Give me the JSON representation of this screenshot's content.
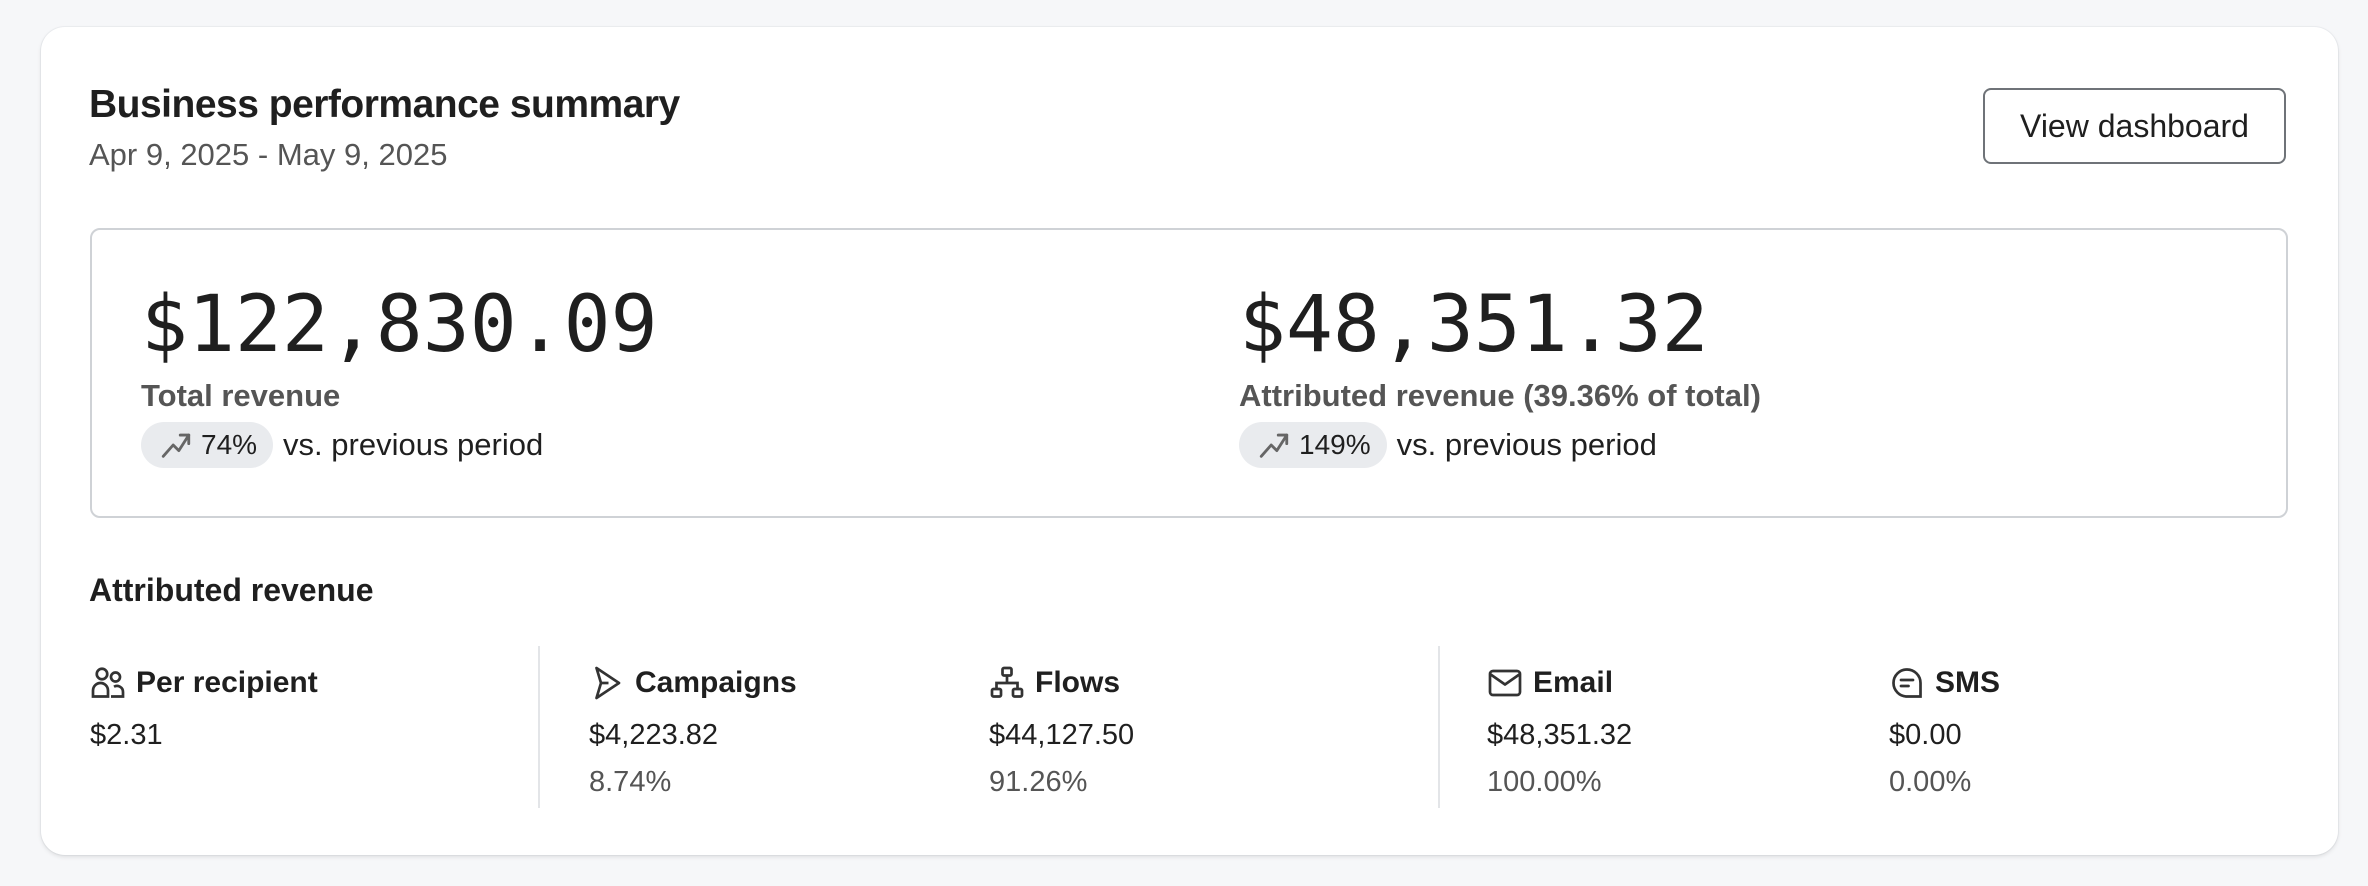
{
  "header": {
    "title": "Business performance summary",
    "date_range": "Apr 9, 2025 - May 9, 2025",
    "view_dashboard_label": "View dashboard"
  },
  "kpis": [
    {
      "value": "$122,830.09",
      "label": "Total revenue",
      "change": "74%",
      "change_icon": "trending-up-icon",
      "comparison": "vs. previous period"
    },
    {
      "value": "$48,351.32",
      "label": "Attributed revenue (39.36% of total)",
      "change": "149%",
      "change_icon": "trending-up-icon",
      "comparison": "vs. previous period"
    }
  ],
  "attributed": {
    "title": "Attributed revenue",
    "items": [
      {
        "label": "Per recipient",
        "icon": "users-icon",
        "value": "$2.31"
      },
      {
        "label": "Campaigns",
        "icon": "send-icon",
        "value": "$4,223.82",
        "percent": "8.74%"
      },
      {
        "label": "Flows",
        "icon": "flow-icon",
        "value": "$44,127.50",
        "percent": "91.26%"
      },
      {
        "label": "Email",
        "icon": "mail-icon",
        "value": "$48,351.32",
        "percent": "100.00%"
      },
      {
        "label": "SMS",
        "icon": "message-icon",
        "value": "$0.00",
        "percent": "0.00%"
      }
    ]
  },
  "colors": {
    "pill_bg": "#e9ebee",
    "border": "#cfd2d6",
    "text": "#1f1f1f",
    "muted": "#555555"
  }
}
